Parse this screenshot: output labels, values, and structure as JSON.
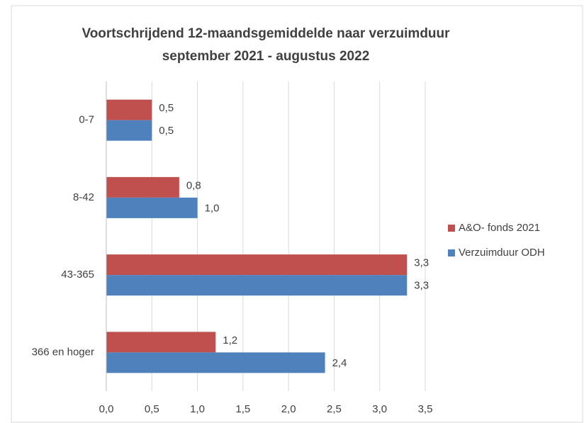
{
  "chart_data": {
    "type": "bar",
    "orientation": "horizontal",
    "title": "Voortschrijdend 12-maandsgemiddelde naar verzuimduur",
    "subtitle": "september 2021 - augustus 2022",
    "categories": [
      "0-7",
      "8-42",
      "43-365",
      "366 en hoger"
    ],
    "series": [
      {
        "name": "A&O- fonds 2021",
        "color": "#c0504d",
        "values": [
          0.5,
          0.8,
          3.3,
          1.2
        ],
        "value_labels": [
          "0,5",
          "0,8",
          "3,3",
          "1,2"
        ]
      },
      {
        "name": "Verzuimduur ODH",
        "color": "#4f81bd",
        "values": [
          0.5,
          1.0,
          3.3,
          2.4
        ],
        "value_labels": [
          "0,5",
          "1,0",
          "3,3",
          "2,4"
        ]
      }
    ],
    "xlim": [
      0,
      3.5
    ],
    "xticks": [
      {
        "value": 0,
        "label": "0,0"
      },
      {
        "value": 0.5,
        "label": "0,5"
      },
      {
        "value": 1,
        "label": "1,0"
      },
      {
        "value": 1.5,
        "label": "1,5"
      },
      {
        "value": 2,
        "label": "2,0"
      },
      {
        "value": 2.5,
        "label": "2,5"
      },
      {
        "value": 3,
        "label": "3,0"
      },
      {
        "value": 3.5,
        "label": "3,5"
      }
    ],
    "grid": true,
    "legend": "right"
  }
}
